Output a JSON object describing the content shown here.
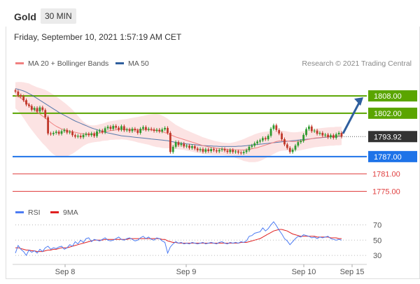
{
  "header": {
    "title": "Gold",
    "timeframe": "30 MIN"
  },
  "date_line": "Friday, September 10, 2021 1:57:19 AM CET",
  "legend": {
    "ma20": {
      "label": "MA 20 + Bollinger Bands",
      "color": "#f08080"
    },
    "ma50": {
      "label": "MA 50",
      "color": "#2f5f9e"
    }
  },
  "credit": "Research © 2021 Trading Central",
  "rsi_legend": {
    "rsi": {
      "label": "RSI",
      "color": "#4d7cf3"
    },
    "ma9": {
      "label": "9MA",
      "color": "#e02020"
    }
  },
  "chart_data": [
    {
      "type": "candlestick",
      "ylim": [
        1771,
        1816
      ],
      "x_ticks": [
        "Sep 8",
        "Sep 9",
        "Sep 10",
        "Sep 15"
      ],
      "last_price": {
        "value": "1793.92",
        "color": "#333333"
      },
      "levels": [
        {
          "value": 1808.0,
          "label": "1808.00",
          "kind": "resistance",
          "color": "#5aa500"
        },
        {
          "value": 1802.0,
          "label": "1802.00",
          "kind": "resistance",
          "color": "#5aa500"
        },
        {
          "value": 1787.0,
          "label": "1787.00",
          "kind": "pivot",
          "color": "#1e73e8"
        },
        {
          "value": 1781.0,
          "label": "1781.00",
          "kind": "support",
          "color": "#e04040"
        },
        {
          "value": 1775.0,
          "label": "1775.00",
          "kind": "support",
          "color": "#e04040"
        }
      ],
      "bias_arrow": {
        "from": 1794,
        "to": 1808,
        "color": "#2f5f9e"
      },
      "candles": [
        1809.5,
        1808.2,
        1807.8,
        1806.5,
        1805.0,
        1804.5,
        1803.2,
        1803.8,
        1802.6,
        1804.0,
        1803.1,
        1800.6,
        1795.0,
        1794.8,
        1795.2,
        1795.6,
        1794.9,
        1795.8,
        1796.2,
        1795.3,
        1795.6,
        1794.4,
        1793.9,
        1794.2,
        1793.7,
        1794.5,
        1794.9,
        1794.4,
        1795.0,
        1794.1,
        1795.7,
        1796.0,
        1795.4,
        1796.8,
        1797.3,
        1796.6,
        1797.6,
        1797.0,
        1796.3,
        1797.5,
        1796.1,
        1796.4,
        1795.8,
        1796.6,
        1796.1,
        1795.2,
        1796.6,
        1797.2,
        1796.3,
        1796.6,
        1796.4,
        1795.9,
        1796.3,
        1795.7,
        1796.4,
        1796.9,
        1795.2,
        1788.6,
        1790.4,
        1792.0,
        1791.0,
        1791.5,
        1790.5,
        1790.8,
        1790.0,
        1790.6,
        1789.8,
        1789.2,
        1789.6,
        1788.7,
        1789.5,
        1788.9,
        1789.6,
        1789.2,
        1788.8,
        1789.3,
        1789.6,
        1789.1,
        1788.6,
        1789.3,
        1788.6,
        1788.8,
        1788.4,
        1788.2,
        1788.6,
        1789.2,
        1790.4,
        1790.8,
        1791.6,
        1792.2,
        1792.6,
        1793.4,
        1793.0,
        1794.2,
        1796.6,
        1797.8,
        1796.2,
        1795.0,
        1793.0,
        1791.2,
        1790.0,
        1788.6,
        1789.4,
        1790.8,
        1792.0,
        1792.4,
        1794.5,
        1796.5,
        1797.4,
        1795.8,
        1796.0,
        1794.9,
        1795.2,
        1794.3,
        1794.6,
        1793.7,
        1794.4,
        1793.5,
        1794.7,
        1795.2,
        1793.9
      ],
      "ma20": [
        1808.2,
        1807.8,
        1807.2,
        1806.5,
        1805.7,
        1804.9,
        1804.0,
        1803.2,
        1802.4,
        1801.7,
        1801.0,
        1800.4,
        1799.6,
        1798.8,
        1798.1,
        1797.5,
        1797.0,
        1796.6,
        1796.3,
        1796.0,
        1795.8,
        1795.6,
        1795.4,
        1795.2,
        1795.0,
        1794.9,
        1794.8,
        1794.8,
        1794.8,
        1794.9,
        1795.0,
        1795.2,
        1795.4,
        1795.6,
        1795.8,
        1796.0,
        1796.1,
        1796.2,
        1796.3,
        1796.4,
        1796.4,
        1796.4,
        1796.4,
        1796.4,
        1796.4,
        1796.3,
        1796.3,
        1796.3,
        1796.3,
        1796.3,
        1796.2,
        1796.1,
        1796.0,
        1795.9,
        1795.6,
        1795.3,
        1795.0,
        1794.6,
        1794.2,
        1793.8,
        1793.5,
        1793.2,
        1792.9,
        1792.6,
        1792.3,
        1792.0,
        1791.7,
        1791.4,
        1791.1,
        1790.8,
        1790.6,
        1790.4,
        1790.2,
        1790.0,
        1789.9,
        1789.8,
        1789.7,
        1789.6,
        1789.5,
        1789.4,
        1789.4,
        1789.3,
        1789.3,
        1789.3,
        1789.3,
        1789.4,
        1789.5,
        1789.7,
        1789.9,
        1790.1,
        1790.4,
        1790.7,
        1791.0,
        1791.3,
        1791.6,
        1791.9,
        1792.2,
        1792.4,
        1792.5,
        1792.5,
        1792.4,
        1792.3,
        1792.2,
        1792.2,
        1792.3,
        1792.4,
        1792.6,
        1792.8,
        1793.0,
        1793.2,
        1793.4,
        1793.5,
        1793.6,
        1793.7,
        1793.8,
        1793.9,
        1794.0,
        1794.0,
        1794.1,
        1794.1,
        1794.2
      ],
      "bb_width": [
        4.5,
        5.0,
        5.6,
        6.2,
        6.8,
        7.4,
        7.8,
        8.2,
        8.6,
        9.0,
        9.4,
        9.7,
        10.0,
        10.2,
        10.3,
        10.3,
        10.1,
        9.8,
        9.4,
        8.9,
        8.3,
        7.6,
        6.8,
        5.9,
        5.0,
        4.2,
        3.6,
        3.2,
        3.0,
        2.9,
        2.9,
        3.0,
        3.0,
        3.1,
        3.2,
        3.2,
        3.3,
        3.3,
        3.4,
        3.4,
        3.5,
        3.6,
        3.8,
        4.0,
        4.2,
        4.4,
        4.6,
        4.8,
        5.0,
        5.2,
        5.4,
        5.6,
        5.7,
        5.7,
        5.6,
        5.4,
        5.1,
        4.8,
        4.5,
        4.2,
        4.0,
        3.8,
        3.6,
        3.5,
        3.4,
        3.3,
        3.2,
        3.1,
        3.0,
        2.9,
        2.8,
        2.7,
        2.6,
        2.5,
        2.4,
        2.3,
        2.2,
        2.2,
        2.2,
        2.3,
        2.5,
        2.8,
        3.1,
        3.4,
        3.8,
        4.1,
        4.4,
        4.6,
        4.8,
        4.9,
        4.9,
        4.8,
        4.6,
        4.4,
        4.2,
        4.0,
        3.8,
        3.6,
        3.5,
        3.4,
        3.3,
        3.2,
        3.2,
        3.2,
        3.2,
        3.2,
        3.2,
        3.2,
        3.2,
        3.2,
        3.2,
        3.2,
        3.2,
        3.2,
        3.2,
        3.2,
        3.2,
        3.2,
        3.2,
        3.2,
        3.2
      ],
      "ma50": [
        1810.5,
        1810.3,
        1810.0,
        1809.7,
        1809.3,
        1808.8,
        1808.3,
        1807.7,
        1807.1,
        1806.5,
        1805.9,
        1805.3,
        1804.7,
        1804.1,
        1803.5,
        1802.9,
        1802.3,
        1801.8,
        1801.3,
        1800.8,
        1800.3,
        1799.8,
        1799.3,
        1798.9,
        1798.5,
        1798.1,
        1797.7,
        1797.3,
        1796.9,
        1796.6,
        1796.3,
        1796.0,
        1795.7,
        1795.4,
        1795.2,
        1795.0,
        1794.8,
        1794.6,
        1794.4,
        1794.2,
        1794.1,
        1794.0,
        1793.9,
        1793.8,
        1793.7,
        1793.6,
        1793.5,
        1793.4,
        1793.3,
        1793.2,
        1793.1,
        1793.0,
        1792.9,
        1792.8,
        1792.7,
        1792.6,
        1792.5,
        1792.3,
        1792.1,
        1791.9,
        1791.7,
        1791.6,
        1791.5,
        1791.4,
        1791.3,
        1791.2,
        1791.1,
        1791.0,
        1790.9,
        1790.8,
        1790.8,
        1790.7,
        1790.7,
        1790.6,
        1790.6,
        1790.5,
        1790.5,
        1790.5,
        1790.5,
        1790.5,
        1790.5,
        1790.5,
        1790.6,
        1790.6,
        1790.7,
        1790.8,
        1790.9,
        1791.0,
        1791.1,
        1791.2,
        1791.3,
        1791.4,
        1791.5,
        1791.6,
        1791.7,
        1791.8,
        1791.9,
        1792.0,
        1792.1,
        1792.2,
        1792.3,
        1792.4,
        1792.5,
        1792.6,
        1792.7,
        1792.8,
        1792.9,
        1793.0,
        1793.1,
        1793.2,
        1793.3,
        1793.4,
        1793.5,
        1793.6,
        1793.7,
        1793.8,
        1793.8,
        1793.9,
        1793.9,
        1794.0,
        1794.0
      ]
    },
    {
      "type": "line",
      "name": "RSI panel",
      "ylim": [
        20,
        75
      ],
      "y_ticks": [
        70,
        50,
        30
      ],
      "rsi": [
        33,
        43,
        38,
        35,
        30,
        37,
        34,
        36,
        33,
        38,
        35,
        40,
        42,
        38,
        40,
        39,
        41,
        42,
        38,
        40,
        44,
        42,
        48,
        45,
        50,
        47,
        52,
        53,
        48,
        51,
        50,
        49,
        51,
        53,
        50,
        49,
        50,
        52,
        54,
        51,
        50,
        52,
        53,
        51,
        49,
        50,
        53,
        55,
        52,
        54,
        51,
        50,
        53,
        52,
        49,
        47,
        33,
        41,
        45,
        48,
        46,
        47,
        45,
        46,
        45,
        47,
        46,
        45,
        46,
        47,
        45,
        46,
        47,
        46,
        45,
        47,
        48,
        46,
        45,
        47,
        46,
        47,
        46,
        48,
        47,
        49,
        55,
        56,
        59,
        60,
        61,
        66,
        62,
        65,
        70,
        74,
        69,
        63,
        58,
        52,
        49,
        44,
        48,
        52,
        55,
        54,
        57,
        56,
        55,
        53,
        54,
        52,
        54,
        53,
        54,
        55,
        52,
        51,
        50,
        51,
        50
      ],
      "ma9": [
        40,
        40,
        39,
        38,
        37,
        37,
        36,
        36,
        35,
        35,
        35,
        36,
        37,
        37,
        38,
        38,
        39,
        40,
        40,
        40,
        41,
        42,
        43,
        44,
        45,
        46,
        47,
        48,
        49,
        50,
        50,
        50,
        50,
        51,
        51,
        51,
        51,
        51,
        51,
        51,
        51,
        51,
        52,
        52,
        52,
        52,
        52,
        52,
        52,
        52,
        52,
        52,
        52,
        52,
        51,
        51,
        49,
        48,
        47,
        47,
        46,
        46,
        46,
        46,
        46,
        46,
        46,
        46,
        46,
        46,
        46,
        46,
        46,
        46,
        46,
        46,
        46,
        46,
        46,
        46,
        46,
        46,
        46,
        47,
        47,
        47,
        48,
        49,
        50,
        51,
        52,
        54,
        56,
        58,
        60,
        62,
        63,
        64,
        64,
        63,
        62,
        60,
        58,
        57,
        56,
        55,
        55,
        55,
        55,
        55,
        55,
        54,
        54,
        54,
        54,
        54,
        53,
        53,
        53,
        52,
        52
      ]
    }
  ]
}
